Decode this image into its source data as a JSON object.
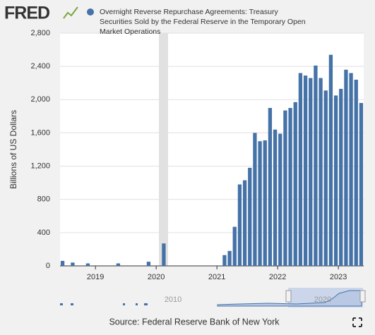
{
  "chart_data": {
    "type": "bar",
    "logo": "FRED",
    "series": [
      {
        "name": "Overnight Reverse Repurchase Agreements: Treasury Securities Sold by the Federal Reserve in the Temporary Open Market Operations",
        "color": "#4572a7",
        "values": [
          60,
          0,
          40,
          0,
          0,
          30,
          0,
          0,
          0,
          0,
          0,
          30,
          0,
          0,
          0,
          0,
          0,
          50,
          0,
          0,
          270,
          0,
          0,
          0,
          0,
          0,
          0,
          0,
          0,
          0,
          0,
          0,
          130,
          180,
          470,
          980,
          1030,
          1180,
          1600,
          1500,
          1510,
          1900,
          1640,
          1590,
          1870,
          1900,
          1970,
          2320,
          2290,
          2260,
          2410,
          2260,
          2110,
          2540,
          2050,
          2130,
          2360,
          2320,
          2240,
          1960
        ]
      }
    ],
    "categories": [
      null,
      null,
      null,
      null,
      null,
      null,
      null,
      "2019",
      null,
      null,
      null,
      null,
      null,
      null,
      null,
      null,
      null,
      null,
      null,
      "2020",
      null,
      null,
      null,
      null,
      null,
      null,
      null,
      null,
      null,
      null,
      null,
      "2021",
      null,
      null,
      null,
      null,
      null,
      null,
      null,
      null,
      null,
      null,
      null,
      "2022",
      null,
      null,
      null,
      null,
      null,
      null,
      null,
      null,
      null,
      null,
      null,
      "2023",
      null,
      null,
      null,
      null
    ],
    "y_label": "Billions of US Dollars",
    "ylim": [
      0,
      2800
    ],
    "yticks": [
      0,
      400,
      800,
      {
        "value": 1200,
        "label": "1,200"
      },
      {
        "value": 1600,
        "label": "1,600"
      },
      {
        "value": 2000,
        "label": "2,000"
      },
      {
        "value": 2400,
        "label": "2,400"
      },
      {
        "value": 2800,
        "label": "2,800"
      }
    ],
    "grid": true,
    "navigator_labels": [
      "2010",
      "2020"
    ],
    "source": "Source: Federal Reserve Bank of New York"
  }
}
